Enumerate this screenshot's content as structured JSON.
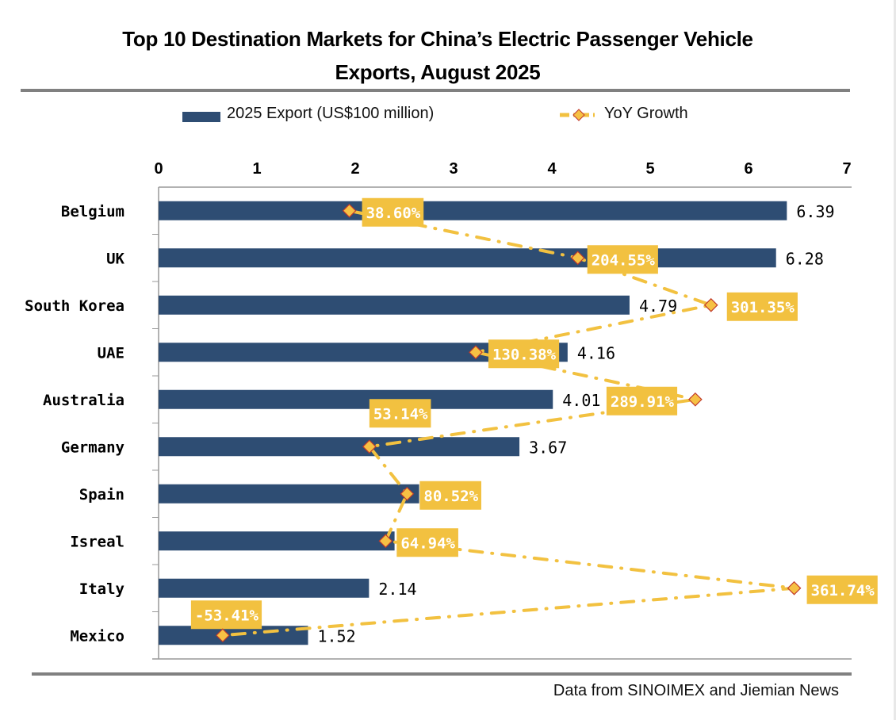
{
  "title_line1": "Top 10 Destination Markets for China’s Electric Passenger Vehicle",
  "title_line2": "Exports, August 2025",
  "legend": {
    "bar_label": "2025 Export (US$100 million)",
    "line_label": "YoY Growth"
  },
  "source": "Data from SINOIMEX and Jiemian News",
  "colors": {
    "bar": "#2e4d73",
    "line": "#f2c140",
    "marker_fill": "#f6c144",
    "marker_stroke": "#c0392b",
    "label_bg": "#f2c140"
  },
  "chart_data": {
    "type": "bar",
    "orientation": "horizontal",
    "title": "Top 10 Destination Markets for China’s Electric Passenger Vehicle Exports, August 2025",
    "categories": [
      "Belgium",
      "UK",
      "South Korea",
      "UAE",
      "Australia",
      "Germany",
      "Spain",
      "Isreal",
      "Italy",
      "Mexico"
    ],
    "series": [
      {
        "name": "2025 Export (US$100 million)",
        "type": "bar",
        "values": [
          6.39,
          6.28,
          4.79,
          4.16,
          4.01,
          3.67,
          2.65,
          2.4,
          2.14,
          1.52
        ],
        "labels": [
          "6.39",
          "6.28",
          "4.79",
          "4.16",
          "4.01",
          "3.67",
          "",
          "",
          "2.14",
          "1.52"
        ]
      },
      {
        "name": "YoY Growth",
        "type": "line",
        "unit": "%",
        "values": [
          38.6,
          204.55,
          301.35,
          130.38,
          289.91,
          53.14,
          80.52,
          64.94,
          361.74,
          -53.41
        ],
        "labels": [
          "38.60%",
          "204.55%",
          "301.35%",
          "130.38%",
          "289.91%",
          "53.14%",
          "80.52%",
          "64.94%",
          "361.74%",
          "-53.41%"
        ]
      }
    ],
    "xaxis": {
      "range": [
        0,
        7
      ],
      "ticks": [
        "0",
        "1",
        "2",
        "3",
        "4",
        "5",
        "6",
        "7"
      ],
      "position": "top"
    },
    "secondary_axis": {
      "range": [
        -100,
        400
      ],
      "visible": false
    },
    "legend_position": "top",
    "grid": false
  }
}
